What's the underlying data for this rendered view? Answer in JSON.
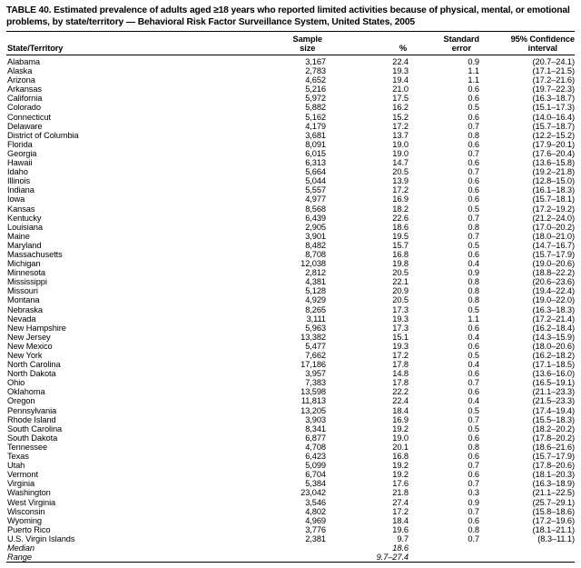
{
  "title": "TABLE 40. Estimated prevalence of adults aged ≥18 years who reported limited activities because of physical, mental, or emotional problems, by state/territory — Behavioral Risk Factor Surveillance System, United States, 2005",
  "table": {
    "headers": {
      "state": "State/Territory",
      "sample": [
        "Sample",
        "size"
      ],
      "percent": [
        "",
        "%"
      ],
      "standard_error": [
        "Standard",
        "error"
      ],
      "confidence_interval": [
        "95% Confidence",
        "interval"
      ]
    },
    "rows": [
      [
        "Alabama",
        "3,167",
        "22.4",
        "0.9",
        "(20.7–24.1)"
      ],
      [
        "Alaska",
        "2,783",
        "19.3",
        "1.1",
        "(17.1–21.5)"
      ],
      [
        "Arizona",
        "4,652",
        "19.4",
        "1.1",
        "(17.2–21.6)"
      ],
      [
        "Arkansas",
        "5,216",
        "21.0",
        "0.6",
        "(19.7–22.3)"
      ],
      [
        "California",
        "5,972",
        "17.5",
        "0.6",
        "(16.3–18.7)"
      ],
      [
        "Colorado",
        "5,882",
        "16.2",
        "0.5",
        "(15.1–17.3)"
      ],
      [
        "Connecticut",
        "5,162",
        "15.2",
        "0.6",
        "(14.0–16.4)"
      ],
      [
        "Delaware",
        "4,179",
        "17.2",
        "0.7",
        "(15.7–18.7)"
      ],
      [
        "District of Columbia",
        "3,681",
        "13.7",
        "0.8",
        "(12.2–15.2)"
      ],
      [
        "Florida",
        "8,091",
        "19.0",
        "0.6",
        "(17.9–20.1)"
      ],
      [
        "Georgia",
        "6,015",
        "19.0",
        "0.7",
        "(17.6–20.4)"
      ],
      [
        "Hawaii",
        "6,313",
        "14.7",
        "0.6",
        "(13.6–15.8)"
      ],
      [
        "Idaho",
        "5,664",
        "20.5",
        "0.7",
        "(19.2–21.8)"
      ],
      [
        "Illinois",
        "5,044",
        "13.9",
        "0.6",
        "(12.8–15.0)"
      ],
      [
        "Indiana",
        "5,557",
        "17.2",
        "0.6",
        "(16.1–18.3)"
      ],
      [
        "Iowa",
        "4,977",
        "16.9",
        "0.6",
        "(15.7–18.1)"
      ],
      [
        "Kansas",
        "8,568",
        "18.2",
        "0.5",
        "(17.2–19.2)"
      ],
      [
        "Kentucky",
        "6,439",
        "22.6",
        "0.7",
        "(21.2–24.0)"
      ],
      [
        "Louisiana",
        "2,905",
        "18.6",
        "0.8",
        "(17.0–20.2)"
      ],
      [
        "Maine",
        "3,901",
        "19.5",
        "0.7",
        "(18.0–21.0)"
      ],
      [
        "Maryland",
        "8,482",
        "15.7",
        "0.5",
        "(14.7–16.7)"
      ],
      [
        "Massachusetts",
        "8,708",
        "16.8",
        "0.6",
        "(15.7–17.9)"
      ],
      [
        "Michigan",
        "12,038",
        "19.8",
        "0.4",
        "(19.0–20.6)"
      ],
      [
        "Minnesota",
        "2,812",
        "20.5",
        "0.9",
        "(18.8–22.2)"
      ],
      [
        "Mississippi",
        "4,381",
        "22.1",
        "0.8",
        "(20.6–23.6)"
      ],
      [
        "Missouri",
        "5,128",
        "20.9",
        "0.8",
        "(19.4–22.4)"
      ],
      [
        "Montana",
        "4,929",
        "20.5",
        "0.8",
        "(19.0–22.0)"
      ],
      [
        "Nebraska",
        "8,265",
        "17.3",
        "0.5",
        "(16.3–18.3)"
      ],
      [
        "Nevada",
        "3,111",
        "19.3",
        "1.1",
        "(17.2–21.4)"
      ],
      [
        "New Hampshire",
        "5,963",
        "17.3",
        "0.6",
        "(16.2–18.4)"
      ],
      [
        "New Jersey",
        "13,382",
        "15.1",
        "0.4",
        "(14.3–15.9)"
      ],
      [
        "New Mexico",
        "5,477",
        "19.3",
        "0.6",
        "(18.0–20.6)"
      ],
      [
        "New York",
        "7,662",
        "17.2",
        "0.5",
        "(16.2–18.2)"
      ],
      [
        "North Carolina",
        "17,186",
        "17.8",
        "0.4",
        "(17.1–18.5)"
      ],
      [
        "North Dakota",
        "3,957",
        "14.8",
        "0.6",
        "(13.6–16.0)"
      ],
      [
        "Ohio",
        "7,383",
        "17.8",
        "0.7",
        "(16.5–19.1)"
      ],
      [
        "Oklahoma",
        "13,598",
        "22.2",
        "0.6",
        "(21.1–23.3)"
      ],
      [
        "Oregon",
        "11,813",
        "22.4",
        "0.4",
        "(21.5–23.3)"
      ],
      [
        "Pennsylvania",
        "13,205",
        "18.4",
        "0.5",
        "(17.4–19.4)"
      ],
      [
        "Rhode Island",
        "3,903",
        "16.9",
        "0.7",
        "(15.5–18.3)"
      ],
      [
        "South Carolina",
        "8,341",
        "19.2",
        "0.5",
        "(18.2–20.2)"
      ],
      [
        "South Dakota",
        "6,877",
        "19.0",
        "0.6",
        "(17.8–20.2)"
      ],
      [
        "Tennessee",
        "4,708",
        "20.1",
        "0.8",
        "(18.6–21.6)"
      ],
      [
        "Texas",
        "6,423",
        "16.8",
        "0.6",
        "(15.7–17.9)"
      ],
      [
        "Utah",
        "5,099",
        "19.2",
        "0.7",
        "(17.8–20.6)"
      ],
      [
        "Vermont",
        "6,704",
        "19.2",
        "0.6",
        "(18.1–20.3)"
      ],
      [
        "Virginia",
        "5,384",
        "17.6",
        "0.7",
        "(16.3–18.9)"
      ],
      [
        "Washington",
        "23,042",
        "21.8",
        "0.3",
        "(21.1–22.5)"
      ],
      [
        "West Virginia",
        "3,546",
        "27.4",
        "0.9",
        "(25.7–29.1)"
      ],
      [
        "Wisconsin",
        "4,802",
        "17.2",
        "0.7",
        "(15.8–18.6)"
      ],
      [
        "Wyoming",
        "4,969",
        "18.4",
        "0.6",
        "(17.2–19.6)"
      ],
      [
        "Puerto Rico",
        "3,776",
        "19.6",
        "0.8",
        "(18.1–21.1)"
      ],
      [
        "U.S. Virgin Islands",
        "2,381",
        "9.7",
        "0.7",
        "(8.3–11.1)"
      ]
    ],
    "summary_rows": [
      {
        "label": "Median",
        "percent": "18.6"
      },
      {
        "label": "Range",
        "percent": "9.7–27.4"
      }
    ]
  }
}
